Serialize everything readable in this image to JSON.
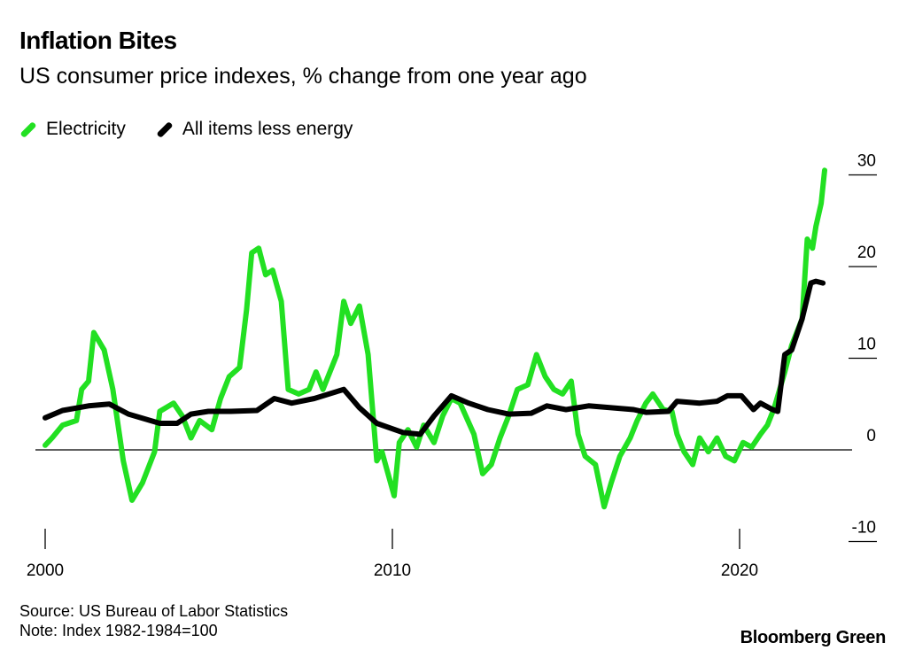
{
  "chart_data": {
    "type": "line",
    "title": "Inflation Bites",
    "subtitle": "US consumer price indexes, % change from one year ago",
    "xlabel": "",
    "ylabel": "",
    "xlim": [
      2000,
      2022.6
    ],
    "ylim": [
      -10,
      30
    ],
    "x_ticks": [
      "2000",
      "2010",
      "2020"
    ],
    "y_ticks": [
      "30",
      "20",
      "10",
      "0",
      "-10"
    ],
    "grid": false,
    "legend_position": "top-left",
    "series": [
      {
        "name": "Electricity",
        "color": "#22e022",
        "x": [
          2000.0,
          2000.2,
          2000.5,
          2000.9,
          2001.05,
          2001.25,
          2001.4,
          2001.7,
          2001.95,
          2002.25,
          2002.5,
          2002.8,
          2003.15,
          2003.3,
          2003.7,
          2003.95,
          2004.2,
          2004.45,
          2004.8,
          2005.05,
          2005.3,
          2005.6,
          2005.8,
          2005.95,
          2006.15,
          2006.35,
          2006.55,
          2006.8,
          2007.0,
          2007.3,
          2007.6,
          2007.8,
          2008.0,
          2008.4,
          2008.6,
          2008.8,
          2009.05,
          2009.3,
          2009.55,
          2009.7,
          2010.05,
          2010.2,
          2010.45,
          2010.7,
          2010.9,
          2011.2,
          2011.45,
          2011.7,
          2011.95,
          2012.35,
          2012.6,
          2012.85,
          2013.1,
          2013.35,
          2013.6,
          2013.9,
          2014.15,
          2014.4,
          2014.65,
          2014.9,
          2015.15,
          2015.35,
          2015.55,
          2015.85,
          2016.1,
          2016.3,
          2016.55,
          2016.85,
          2017.05,
          2017.3,
          2017.5,
          2017.8,
          2018.05,
          2018.2,
          2018.4,
          2018.65,
          2018.85,
          2019.1,
          2019.35,
          2019.6,
          2019.85,
          2020.1,
          2020.35,
          2020.6,
          2020.8,
          2021.0,
          2021.3,
          2021.5,
          2021.8,
          2021.95,
          2022.1,
          2022.2,
          2022.35,
          2022.45
        ],
        "y": [
          0.5,
          1.3,
          2.7,
          3.2,
          6.6,
          7.5,
          12.8,
          10.9,
          6.6,
          -1.2,
          -5.5,
          -3.6,
          -0.2,
          4.2,
          5.1,
          3.7,
          1.3,
          3.2,
          2.2,
          5.6,
          8.0,
          9.0,
          15.3,
          21.5,
          22.0,
          19.1,
          19.6,
          16.2,
          6.6,
          6.1,
          6.6,
          8.5,
          6.6,
          10.4,
          16.2,
          13.8,
          15.7,
          10.4,
          -1.2,
          -0.2,
          -5.0,
          0.8,
          2.2,
          0.3,
          2.7,
          0.8,
          3.7,
          5.6,
          5.1,
          1.7,
          -2.6,
          -1.6,
          1.3,
          3.7,
          6.6,
          7.1,
          10.4,
          8.0,
          6.6,
          6.1,
          7.5,
          1.7,
          -0.7,
          -1.6,
          -6.2,
          -3.6,
          -0.7,
          1.3,
          3.2,
          5.1,
          6.1,
          4.4,
          4.2,
          1.7,
          -0.2,
          -1.6,
          1.3,
          -0.2,
          1.3,
          -0.7,
          -1.2,
          0.8,
          0.3,
          1.7,
          2.7,
          4.6,
          8.5,
          11.4,
          14.3,
          23.0,
          22.0,
          24.4,
          26.9,
          30.5
        ]
      },
      {
        "name": "All items less energy",
        "color": "#000000",
        "x": [
          2000.0,
          2000.5,
          2001.25,
          2001.85,
          2002.4,
          2003.3,
          2003.8,
          2004.2,
          2004.7,
          2005.35,
          2006.1,
          2006.6,
          2007.1,
          2007.75,
          2008.6,
          2009.05,
          2009.55,
          2010.3,
          2010.8,
          2011.2,
          2011.7,
          2012.2,
          2012.75,
          2013.35,
          2014.0,
          2014.45,
          2015.0,
          2015.65,
          2016.3,
          2016.95,
          2017.3,
          2017.95,
          2018.2,
          2018.85,
          2019.35,
          2019.65,
          2020.05,
          2020.4,
          2020.6,
          2020.95,
          2021.1,
          2021.3,
          2021.5,
          2021.8,
          2022.05,
          2022.2,
          2022.4
        ],
        "y": [
          3.5,
          4.3,
          4.8,
          5.0,
          3.9,
          2.9,
          2.9,
          3.9,
          4.2,
          4.2,
          4.3,
          5.6,
          5.1,
          5.6,
          6.6,
          4.6,
          2.9,
          1.9,
          1.7,
          3.7,
          5.9,
          5.1,
          4.4,
          3.9,
          4.0,
          4.8,
          4.4,
          4.8,
          4.6,
          4.4,
          4.1,
          4.2,
          5.3,
          5.1,
          5.3,
          5.9,
          5.9,
          4.4,
          5.1,
          4.4,
          4.2,
          10.4,
          10.9,
          14.3,
          18.2,
          18.4,
          18.2
        ]
      }
    ]
  },
  "footer": {
    "source": "Source: US Bureau of Labor Statistics",
    "note": "Note: Index 1982-1984=100",
    "brand": "Bloomberg Green"
  }
}
